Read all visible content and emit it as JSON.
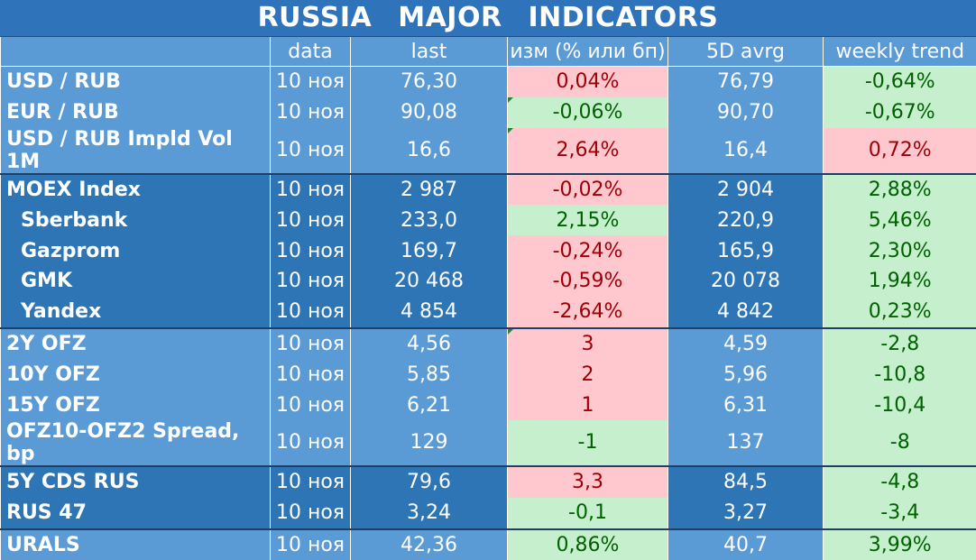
{
  "title": "RUSSIA   MAJOR   INDICATORS",
  "headers": [
    "",
    "data",
    "last",
    "изм (% или бп)",
    "5D avrg",
    "weekly trend"
  ],
  "colors": {
    "header_bg": "#5b9bd5",
    "title_bg": "#2f73bb",
    "up_bg": "#ffc7ce",
    "up_fg": "#9c0006",
    "down_bg": "#c6efce",
    "down_fg": "#006100"
  },
  "rows": [
    {
      "name": "USD / RUB",
      "date": "10 ноя",
      "last": "76,30",
      "chg": "0,04%",
      "avg": "76,79",
      "trend": "-0,64%"
    },
    {
      "name": "EUR / RUB",
      "date": "10 ноя",
      "last": "90,08",
      "chg": "-0,06%",
      "avg": "90,70",
      "trend": "-0,67%"
    },
    {
      "name": "USD / RUB Impld Vol 1M",
      "date": "10 ноя",
      "last": "16,6",
      "chg": "2,64%",
      "avg": "16,4",
      "trend": "0,72%"
    },
    {
      "name": "MOEX Index",
      "date": "10 ноя",
      "last": "2 987",
      "chg": "-0,02%",
      "avg": "2 904",
      "trend": "2,88%"
    },
    {
      "name": "Sberbank",
      "date": "10 ноя",
      "last": "233,0",
      "chg": "2,15%",
      "avg": "220,9",
      "trend": "5,46%"
    },
    {
      "name": "Gazprom",
      "date": "10 ноя",
      "last": "169,7",
      "chg": "-0,24%",
      "avg": "165,9",
      "trend": "2,30%"
    },
    {
      "name": "GMK",
      "date": "10 ноя",
      "last": "20 468",
      "chg": "-0,59%",
      "avg": "20 078",
      "trend": "1,94%"
    },
    {
      "name": "Yandex",
      "date": "10 ноя",
      "last": "4 854",
      "chg": "-2,64%",
      "avg": "4 842",
      "trend": "0,23%"
    },
    {
      "name": "2Y OFZ",
      "date": "10 ноя",
      "last": "4,56",
      "chg": "3",
      "avg": "4,59",
      "trend": "-2,8"
    },
    {
      "name": "10Y OFZ",
      "date": "10 ноя",
      "last": "5,85",
      "chg": "2",
      "avg": "5,96",
      "trend": "-10,8"
    },
    {
      "name": "15Y OFZ",
      "date": "10 ноя",
      "last": "6,21",
      "chg": "1",
      "avg": "6,31",
      "trend": "-10,4"
    },
    {
      "name": "OFZ10-OFZ2 Spread, bp",
      "date": "10 ноя",
      "last": "129",
      "chg": "-1",
      "avg": "137",
      "trend": "-8"
    },
    {
      "name": "5Y CDS RUS",
      "date": "10 ноя",
      "last": "79,6",
      "chg": "3,3",
      "avg": "84,5",
      "trend": "-4,8"
    },
    {
      "name": "RUS 47",
      "date": "10 ноя",
      "last": "3,24",
      "chg": "-0,1",
      "avg": "3,27",
      "trend": "-3,4"
    },
    {
      "name": "URALS",
      "date": "10 ноя",
      "last": "42,36",
      "chg": "0,86%",
      "avg": "40,7",
      "trend": "3,99%"
    }
  ]
}
